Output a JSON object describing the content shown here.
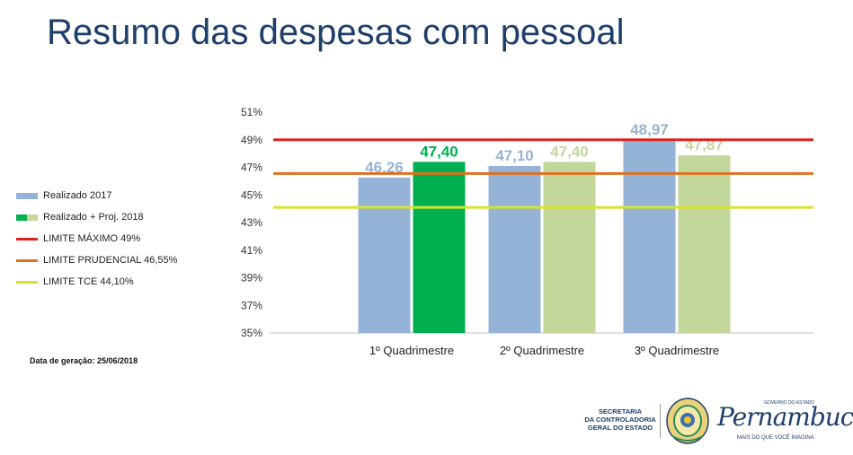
{
  "title": "Resumo das despesas com pessoal",
  "generation_date": "Data de geração: 25/06/2018",
  "legend": [
    {
      "label": "Realizado 2017",
      "kind": "bar",
      "colors": [
        "#95b3d7"
      ]
    },
    {
      "label": "Realizado + Proj. 2018",
      "kind": "split",
      "colors": [
        "#00b050",
        "#c4d79b"
      ]
    },
    {
      "label": "LIMITE MÁXIMO 49%",
      "kind": "line",
      "colors": [
        "#e02020"
      ]
    },
    {
      "label": "LIMITE PRUDENCIAL 46,55%",
      "kind": "line",
      "colors": [
        "#e07020"
      ]
    },
    {
      "label": "LIMITE TCE 44,10%",
      "kind": "line",
      "colors": [
        "#d6e32a"
      ]
    }
  ],
  "logos": {
    "secretaria": [
      "SECRETARIA",
      "DA CONTROLADORIA",
      "GERAL DO ESTADO"
    ],
    "governo_small": "GOVERNO DO ESTADO",
    "governo_name": "Pernambuco",
    "governo_tagline": "MAIS DO QUE VOCÊ IMAGINA"
  },
  "chart_data": {
    "type": "bar",
    "categories": [
      "1º Quadrimestre",
      "2º Quadrimestre",
      "3º Quadrimestre"
    ],
    "series": [
      {
        "name": "Realizado 2017",
        "values": [
          46.26,
          47.1,
          48.97
        ],
        "labels": [
          "46,26",
          "47,10",
          "48,97"
        ],
        "color": "#95b3d7",
        "label_color": "#95b3d7"
      },
      {
        "name": "Realizado + Proj. 2018",
        "values": [
          47.4,
          47.4,
          47.87
        ],
        "labels": [
          "47,40",
          "47,40",
          "47,87"
        ],
        "colors": [
          "#00b050",
          "#c4d79b",
          "#c4d79b"
        ],
        "label_colors": [
          "#00b050",
          "#c4d79b",
          "#c4d79b"
        ]
      }
    ],
    "reference_lines": [
      {
        "name": "LIMITE MÁXIMO 49%",
        "value": 49,
        "color": "#e02020"
      },
      {
        "name": "LIMITE PRUDENCIAL 46,55%",
        "value": 46.55,
        "color": "#e07020"
      },
      {
        "name": "LIMITE TCE 44,10%",
        "value": 44.1,
        "color": "#d6e32a"
      }
    ],
    "y_ticks": [
      "35%",
      "37%",
      "39%",
      "41%",
      "43%",
      "45%",
      "47%",
      "49%",
      "51%"
    ],
    "ylim": [
      35,
      51
    ],
    "grid": false,
    "legend_position": "left"
  }
}
